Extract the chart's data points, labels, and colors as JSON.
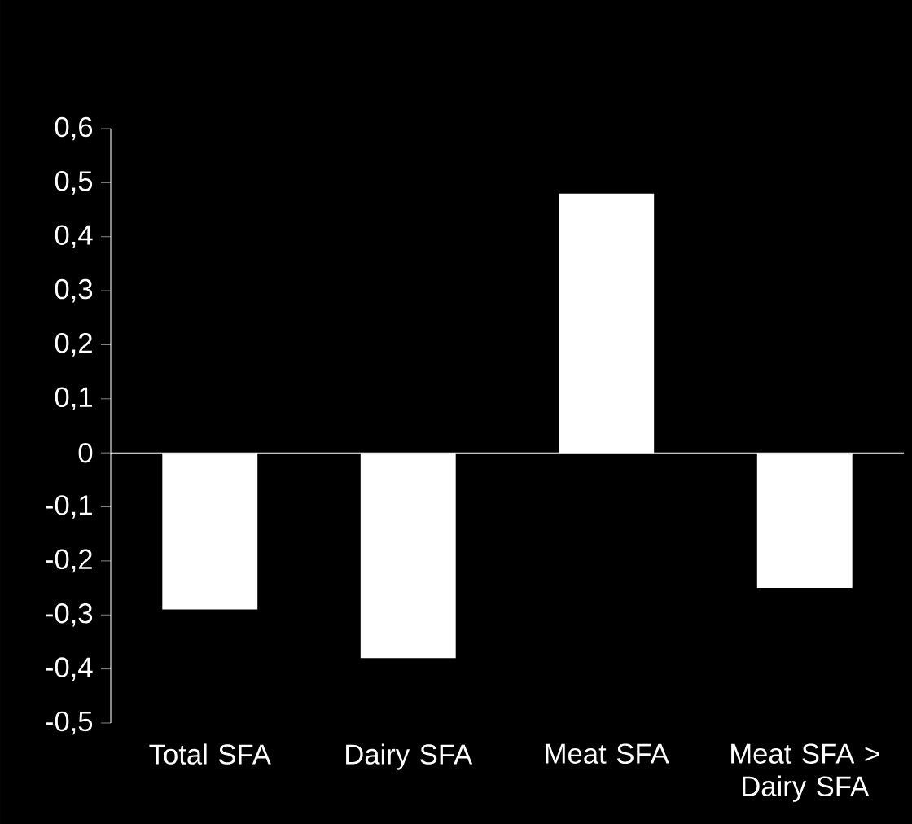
{
  "chart_data": {
    "type": "bar",
    "categories": [
      "Total SFA",
      "Dairy SFA",
      "Meat SFA",
      "Meat SFA > Dairy SFA"
    ],
    "values": [
      -0.29,
      -0.38,
      0.48,
      -0.25
    ],
    "color": "#ffffff",
    "ylim": [
      -0.5,
      0.6
    ],
    "yticks": [
      {
        "value": -0.5,
        "label": "-0,5"
      },
      {
        "value": -0.4,
        "label": "-0,4"
      },
      {
        "value": -0.3,
        "label": "-0,3"
      },
      {
        "value": -0.2,
        "label": "-0,2"
      },
      {
        "value": -0.1,
        "label": "-0,1"
      },
      0,
      {
        "value": 0.1,
        "label": "0,1"
      },
      {
        "value": 0.2,
        "label": "0,2"
      },
      {
        "value": 0.3,
        "label": "0,3"
      },
      {
        "value": 0.4,
        "label": "0,4"
      },
      {
        "value": 0.5,
        "label": "0,5"
      },
      {
        "value": 0.6,
        "label": "0,6"
      }
    ]
  }
}
